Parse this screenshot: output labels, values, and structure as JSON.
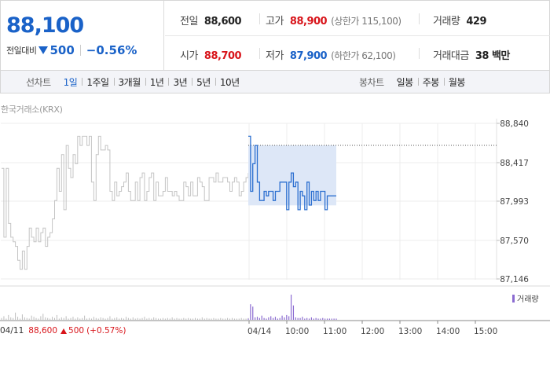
{
  "summary": {
    "current_price": "88,100",
    "change_label": "전일대비",
    "change_amount": "500",
    "change_percent": "−0.56%",
    "prev_close_label": "전일",
    "prev_close": "88,600",
    "high_label": "고가",
    "high": "88,900",
    "upper_limit": "(상한가 115,100)",
    "volume_label": "거래량",
    "volume": "429",
    "open_label": "시가",
    "open": "88,700",
    "low_label": "저가",
    "low": "87,900",
    "lower_limit": "(하한가 62,100)",
    "trade_value_label": "거래대금",
    "trade_value": "38 백만",
    "colors": {
      "up": "#d8141a",
      "down": "#1a62c8"
    }
  },
  "tabs": {
    "line_title": "선차트",
    "line": [
      "1일",
      "1주일",
      "3개월",
      "1년",
      "3년",
      "5년",
      "10년"
    ],
    "line_active": "1일",
    "candle_title": "봉차트",
    "candle": [
      "일봉",
      "주봉",
      "월봉"
    ]
  },
  "chart": {
    "source": "한국거래소(KRX)",
    "legend_volume": "거래량",
    "prev_day_date": "04/11",
    "prev_day_close": "88,600",
    "prev_day_change": "500",
    "prev_day_change_pct": "(+0.57%)",
    "up_color": "#d8141a"
  },
  "chart_data": {
    "type": "line",
    "y_ticks": [
      "88,840",
      "88,417",
      "87,993",
      "87,570",
      "87,146"
    ],
    "ylim": [
      87146,
      88840
    ],
    "reference_line": 88600,
    "x_labels": [
      "04/14",
      "10:00",
      "11:00",
      "12:00",
      "13:00",
      "14:00",
      "15:00"
    ],
    "prev_day_series": {
      "name": "04/11",
      "color": "#c4c4c4",
      "values": [
        88350,
        87600,
        88350,
        87750,
        87600,
        87550,
        87500,
        87350,
        87250,
        87450,
        87250,
        87500,
        87700,
        87600,
        87550,
        87700,
        87550,
        87650,
        87700,
        87500,
        87600,
        87650,
        87800,
        88000,
        88350,
        88100,
        88500,
        87900,
        88600,
        88350,
        88250,
        88500,
        88400,
        88700,
        88600,
        88700,
        88700,
        88600,
        88700,
        88200,
        88000,
        88500,
        88700,
        88550,
        88550,
        88600,
        88550,
        88100,
        88000,
        88200,
        88050,
        88100,
        88150,
        88200,
        88300,
        88100,
        88000,
        88000,
        88200,
        88000,
        88250,
        88300,
        88000,
        88100,
        88250,
        88300,
        88000,
        88200,
        88050,
        88050,
        88100,
        88250,
        88100,
        88100,
        88050,
        88100,
        88050,
        88000,
        88000,
        88200,
        88150,
        88050,
        88200,
        88050,
        88050,
        88250,
        88200,
        88150,
        88000,
        88000,
        88250,
        88250,
        88200,
        88300,
        88200,
        88200,
        88250,
        88250,
        88200,
        88100,
        88200,
        88250,
        88200,
        88050,
        88100,
        88200,
        88250,
        88300
      ]
    },
    "today_series": {
      "name": "04/14",
      "color": "#2b6fd0",
      "values": [
        88700,
        88100,
        88400,
        88600,
        88200,
        88000,
        88000,
        88100,
        88050,
        88100,
        88100,
        88000,
        88100,
        88100,
        88200,
        88200,
        88200,
        87900,
        88200,
        88300,
        88150,
        88200,
        87900,
        88100,
        88050,
        87900,
        88200,
        87950,
        88100,
        88000,
        88100,
        88000,
        88100,
        88100,
        87900,
        88050,
        88050,
        88050,
        88050,
        88050
      ]
    },
    "today_volume": [
      2,
      26,
      22,
      4,
      5,
      3,
      7,
      3,
      2,
      4,
      6,
      3,
      5,
      2,
      3,
      7,
      4,
      8,
      6,
      42,
      24,
      4,
      3,
      3,
      5,
      2,
      3,
      2,
      4,
      2,
      3,
      2,
      2,
      3,
      2,
      2,
      2,
      2,
      2,
      2
    ],
    "prev_day_volume": [
      3,
      6,
      2,
      8,
      4,
      3,
      12,
      5,
      2,
      9,
      4,
      3,
      2,
      7,
      5,
      3,
      2,
      6,
      10,
      4,
      3,
      2,
      5,
      3,
      8,
      2,
      4,
      3,
      6,
      2,
      3,
      5,
      2,
      4,
      2,
      3,
      7,
      2,
      3,
      2,
      5,
      3,
      2,
      4,
      3,
      2,
      3,
      6,
      2,
      3,
      4,
      2,
      3,
      2,
      5,
      3,
      2,
      4,
      2,
      3,
      2,
      3,
      5,
      2,
      3,
      2,
      4,
      3,
      2,
      2,
      3,
      2,
      3,
      2,
      4,
      2,
      3,
      2,
      2,
      3,
      2,
      3,
      2,
      2,
      3,
      2,
      2,
      4,
      2,
      3,
      2,
      2,
      3,
      2,
      2,
      3,
      2,
      2,
      3,
      2,
      3,
      2,
      2,
      2,
      3,
      2,
      2,
      3
    ]
  }
}
